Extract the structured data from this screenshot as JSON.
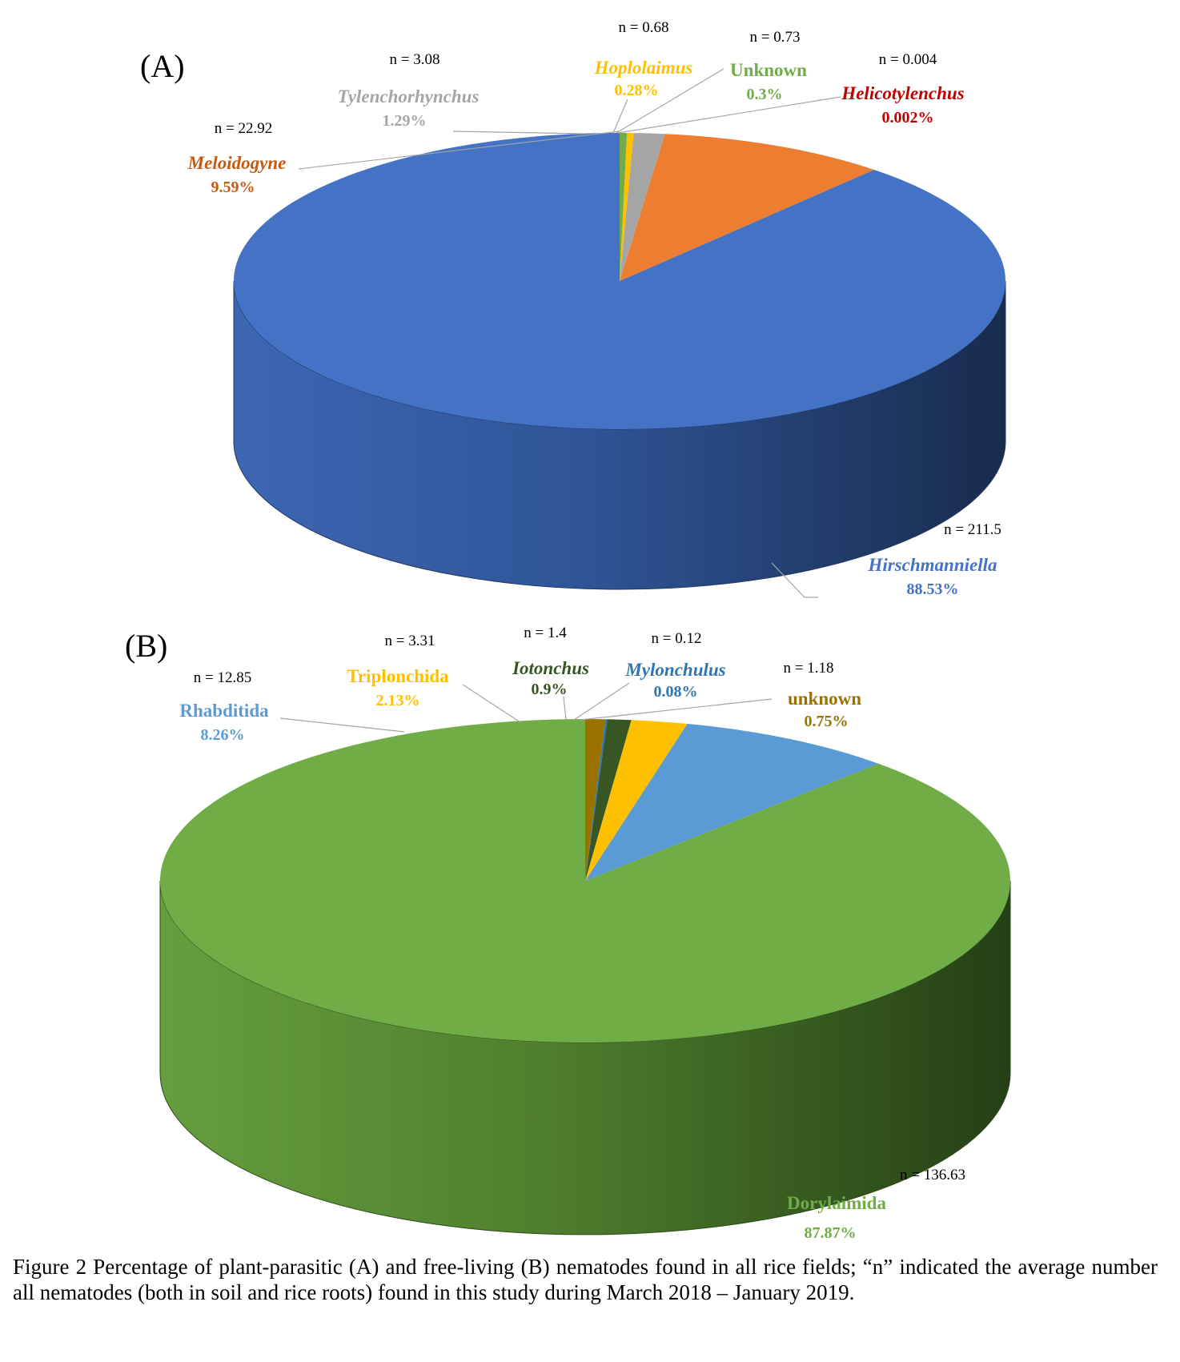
{
  "chart_data": [
    {
      "type": "pie",
      "panel_label": "(A)",
      "style": "3d",
      "slices": [
        {
          "name": "Hirschmanniella",
          "percent": 88.53,
          "pct_label": "88.53%",
          "n_label": "n = 211.5",
          "color": "#4472c4",
          "label_color": "#4472c4",
          "italic": true
        },
        {
          "name": "Meloidogyne",
          "percent": 9.59,
          "pct_label": "9.59%",
          "n_label": "n = 22.92",
          "color": "#ed7d31",
          "label_color": "#c55a11",
          "italic": true
        },
        {
          "name": "Tylenchorhynchus",
          "percent": 1.29,
          "pct_label": "1.29%",
          "n_label": "n = 3.08",
          "color": "#a5a5a5",
          "label_color": "#a5a5a5",
          "italic": true
        },
        {
          "name": "Hoplolaimus",
          "percent": 0.28,
          "pct_label": "0.28%",
          "n_label": "n = 0.68",
          "color": "#ffc000",
          "label_color": "#ffc000",
          "italic": true
        },
        {
          "name": "Unknown",
          "percent": 0.3,
          "pct_label": "0.3%",
          "n_label": "n = 0.73",
          "color": "#70ad47",
          "label_color": "#70ad47",
          "italic": false
        },
        {
          "name": "Helicotylenchus",
          "percent": 0.002,
          "pct_label": "0.002%",
          "n_label": "n = 0.004",
          "color": "#c00000",
          "label_color": "#c00000",
          "italic": true
        }
      ]
    },
    {
      "type": "pie",
      "panel_label": "(B)",
      "style": "3d",
      "slices": [
        {
          "name": "Dorylaimida",
          "percent": 87.87,
          "pct_label": "87.87%",
          "n_label": "n = 136.63",
          "color": "#70ad47",
          "label_color": "#70ad47",
          "italic": false
        },
        {
          "name": "Rhabditida",
          "percent": 8.26,
          "pct_label": "8.26%",
          "n_label": "n = 12.85",
          "color": "#5b9bd5",
          "label_color": "#5b9bd5",
          "italic": false
        },
        {
          "name": "Triplonchida",
          "percent": 2.13,
          "pct_label": "2.13%",
          "n_label": "n = 3.31",
          "color": "#ffc000",
          "label_color": "#ffc000",
          "italic": false
        },
        {
          "name": "Iotonchus",
          "percent": 0.9,
          "pct_label": "0.9%",
          "n_label": "n = 1.4",
          "color": "#375623",
          "label_color": "#375623",
          "italic": true
        },
        {
          "name": "Mylonchulus",
          "percent": 0.08,
          "pct_label": "0.08%",
          "n_label": "n = 0.12",
          "color": "#2e75b6",
          "label_color": "#2e75b6",
          "italic": true
        },
        {
          "name": "unknown",
          "percent": 0.75,
          "pct_label": "0.75%",
          "n_label": "n = 1.18",
          "color": "#997300",
          "label_color": "#997300",
          "italic": false
        }
      ]
    }
  ],
  "caption": "Figure 2 Percentage of plant-parasitic (A) and free-living (B) nematodes found in all rice fields; “n” indicated the average number all nematodes (both in soil and rice roots) found in this study during March 2018 – January 2019."
}
